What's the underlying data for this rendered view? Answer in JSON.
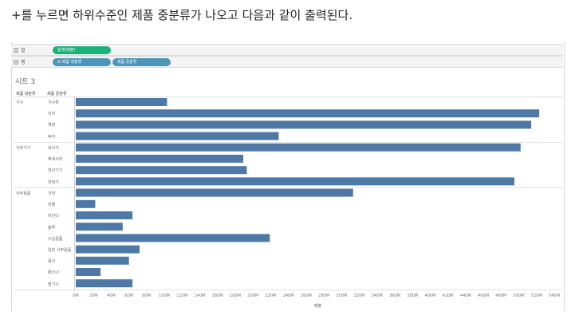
{
  "caption": "+를 누르면 하위수준인 제품 중분류가 나오고 다음과 같이 출력된다.",
  "shelves": {
    "columns": {
      "label": "열",
      "icon": "columns-icon",
      "pill": "합계(매출)",
      "pill_color": "#1bb27a"
    },
    "rows": {
      "label": "행",
      "icon": "rows-icon",
      "pills": [
        "⊟ 제품 대분류",
        "제품 중분류"
      ],
      "pill_color": "#4a95b8"
    }
  },
  "sheet_title": "시트 3",
  "column_headers": [
    "제품 대분류",
    "제품 중분류"
  ],
  "chart_data": {
    "type": "bar",
    "orientation": "horizontal",
    "bar_color": "#4e79a7",
    "xlabel": "매출",
    "xlim": [
      0,
      540
    ],
    "x_unit": "M",
    "xticks": [
      "0M",
      "20M",
      "40M",
      "60M",
      "80M",
      "100M",
      "120M",
      "140M",
      "160M",
      "180M",
      "200M",
      "220M",
      "240M",
      "260M",
      "280M",
      "300M",
      "320M",
      "340M",
      "360M",
      "380M",
      "400M",
      "420M",
      "440M",
      "460M",
      "480M",
      "500M",
      "520M",
      "540M"
    ],
    "groups": [
      {
        "name": "가구",
        "items": [
          {
            "label": "가구류",
            "value": 103
          },
          {
            "label": "의자",
            "value": 523
          },
          {
            "label": "책장",
            "value": 514
          },
          {
            "label": "탁자",
            "value": 229
          }
        ]
      },
      {
        "name": "사무기기",
        "items": [
          {
            "label": "복사기",
            "value": 502
          },
          {
            "label": "액세서리",
            "value": 189
          },
          {
            "label": "전산기기",
            "value": 193
          },
          {
            "label": "전화기",
            "value": 495
          }
        ]
      },
      {
        "name": "사무용품",
        "items": [
          {
            "label": "가전",
            "value": 313
          },
          {
            "label": "라벨",
            "value": 22
          },
          {
            "label": "바인더",
            "value": 64
          },
          {
            "label": "봉투",
            "value": 53
          },
          {
            "label": "수납용품",
            "value": 219
          },
          {
            "label": "일반 사무용품",
            "value": 72
          },
          {
            "label": "종이",
            "value": 60
          },
          {
            "label": "패스너",
            "value": 28
          },
          {
            "label": "필기구",
            "value": 64
          }
        ]
      }
    ]
  }
}
